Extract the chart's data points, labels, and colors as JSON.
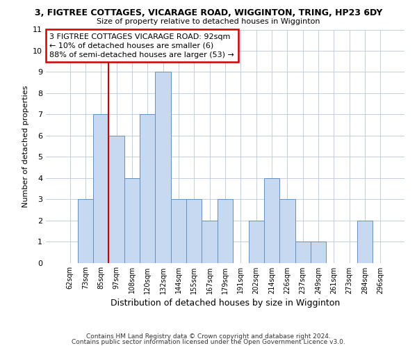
{
  "title": "3, FIGTREE COTTAGES, VICARAGE ROAD, WIGGINTON, TRING, HP23 6DY",
  "subtitle": "Size of property relative to detached houses in Wigginton",
  "xlabel": "Distribution of detached houses by size in Wigginton",
  "ylabel": "Number of detached properties",
  "bin_labels": [
    "62sqm",
    "73sqm",
    "85sqm",
    "97sqm",
    "108sqm",
    "120sqm",
    "132sqm",
    "144sqm",
    "155sqm",
    "167sqm",
    "179sqm",
    "191sqm",
    "202sqm",
    "214sqm",
    "226sqm",
    "237sqm",
    "249sqm",
    "261sqm",
    "273sqm",
    "284sqm",
    "296sqm"
  ],
  "bar_heights": [
    0,
    3,
    7,
    6,
    4,
    7,
    9,
    3,
    3,
    2,
    3,
    0,
    2,
    4,
    3,
    1,
    1,
    0,
    0,
    2,
    0
  ],
  "bar_color": "#c6d9f0",
  "bar_edge_color": "#6690bb",
  "vline_x_index": 2,
  "vline_color": "#cc0000",
  "ylim": [
    0,
    11
  ],
  "yticks": [
    0,
    1,
    2,
    3,
    4,
    5,
    6,
    7,
    8,
    9,
    10,
    11
  ],
  "annotation_text": "3 FIGTREE COTTAGES VICARAGE ROAD: 92sqm\n← 10% of detached houses are smaller (6)\n88% of semi-detached houses are larger (53) →",
  "annotation_box_color": "#ffffff",
  "annotation_box_edge": "#cc0000",
  "footer1": "Contains HM Land Registry data © Crown copyright and database right 2024.",
  "footer2": "Contains public sector information licensed under the Open Government Licence v3.0.",
  "background_color": "#ffffff",
  "grid_color": "#b8c8dc"
}
